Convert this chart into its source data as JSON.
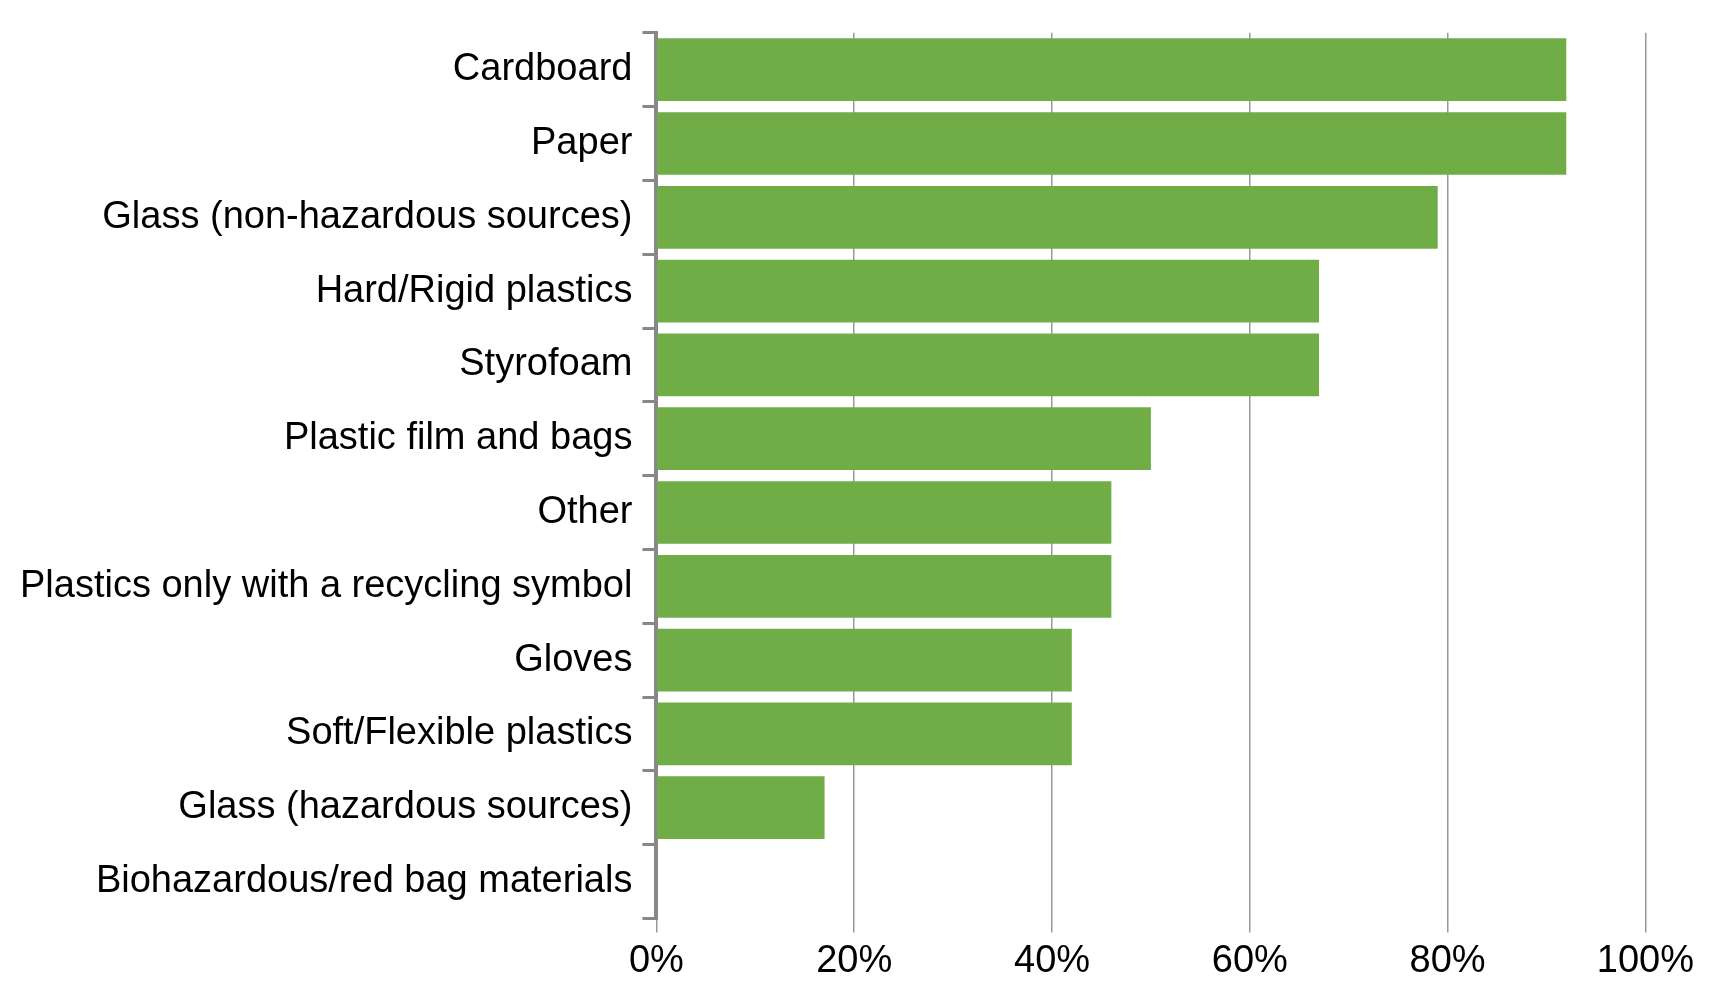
{
  "chart_data": {
    "type": "bar",
    "orientation": "horizontal",
    "categories": [
      "Cardboard",
      "Paper",
      "Glass (non-hazardous sources)",
      "Hard/Rigid plastics",
      "Styrofoam",
      "Plastic film and bags",
      "Other",
      "Plastics only with a recycling symbol",
      "Gloves",
      "Soft/Flexible plastics",
      "Glass (hazardous sources)",
      "Biohazardous/red bag materials"
    ],
    "values": [
      92,
      92,
      79,
      67,
      67,
      50,
      46,
      46,
      42,
      42,
      17,
      0
    ],
    "color": "#70ad47",
    "xlim": [
      0,
      100
    ],
    "xticks": [
      {
        "value": 0,
        "label": "0%"
      },
      {
        "value": 20,
        "label": "20%"
      },
      {
        "value": 40,
        "label": "40%"
      },
      {
        "value": 60,
        "label": "60%"
      },
      {
        "value": 80,
        "label": "80%"
      },
      {
        "value": 100,
        "label": "100%"
      }
    ],
    "grid": "x",
    "legend": false
  }
}
